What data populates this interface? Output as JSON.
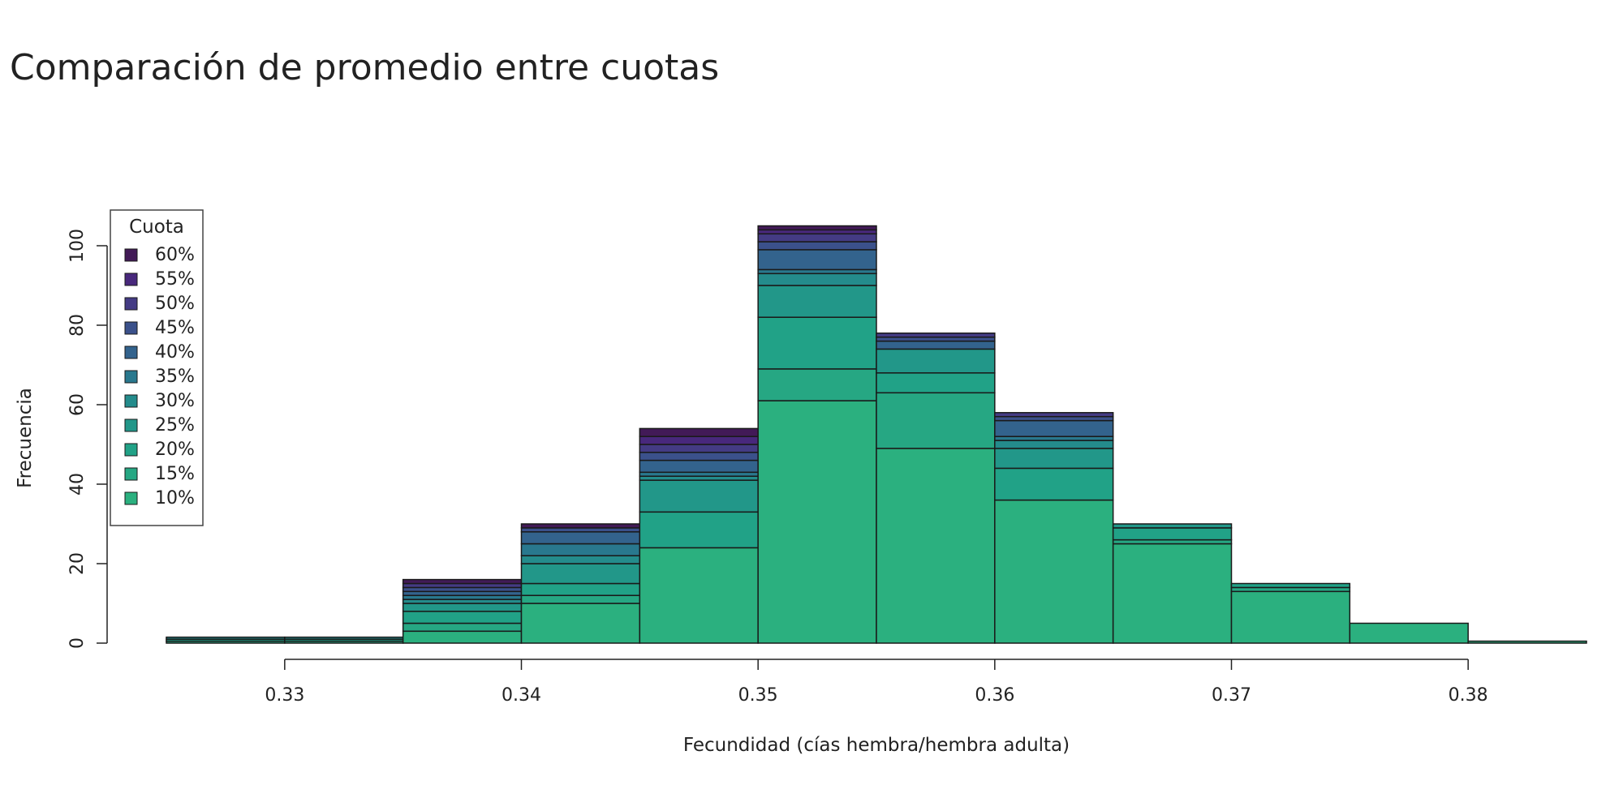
{
  "title": "Comparación de promedio entre cuotas",
  "chart_data": {
    "type": "bar",
    "stacked": true,
    "xlabel": "Fecundidad (cías hembra/hembra adulta)",
    "ylabel": "Frecuencia",
    "xlim": [
      0.325,
      0.385
    ],
    "ylim": [
      0,
      105
    ],
    "x_ticks": [
      0.33,
      0.34,
      0.35,
      0.36,
      0.37,
      0.38
    ],
    "x_tick_labels": [
      "0.33",
      "0.34",
      "0.35",
      "0.36",
      "0.37",
      "0.38"
    ],
    "y_ticks": [
      0,
      20,
      40,
      60,
      80,
      100
    ],
    "y_tick_labels": [
      "0",
      "20",
      "40",
      "60",
      "80",
      "100"
    ],
    "bins": [
      [
        0.325,
        0.33
      ],
      [
        0.33,
        0.335
      ],
      [
        0.335,
        0.34
      ],
      [
        0.34,
        0.345
      ],
      [
        0.345,
        0.35
      ],
      [
        0.35,
        0.355
      ],
      [
        0.355,
        0.36
      ],
      [
        0.36,
        0.365
      ],
      [
        0.365,
        0.37
      ],
      [
        0.37,
        0.375
      ],
      [
        0.375,
        0.38
      ],
      [
        0.38,
        0.385
      ]
    ],
    "legend": {
      "title": "Cuota",
      "position": "top-left"
    },
    "series": [
      {
        "name": "10%",
        "color": "#2bb07f",
        "values": [
          0,
          0,
          3,
          10,
          24,
          61,
          49,
          36,
          25,
          13,
          5,
          0.5
        ]
      },
      {
        "name": "15%",
        "color": "#26a783",
        "values": [
          0.5,
          0.5,
          2,
          2,
          0,
          8,
          14,
          0,
          1,
          1,
          0,
          0
        ]
      },
      {
        "name": "20%",
        "color": "#21a287",
        "values": [
          0.5,
          0.5,
          3,
          3,
          9,
          13,
          5,
          8,
          3,
          1,
          0,
          0
        ]
      },
      {
        "name": "25%",
        "color": "#229789",
        "values": [
          0,
          0,
          2,
          5,
          8,
          8,
          6,
          5,
          1,
          0,
          0,
          0
        ]
      },
      {
        "name": "30%",
        "color": "#248c8c",
        "values": [
          0.5,
          0.5,
          1,
          2,
          1,
          3,
          0,
          2,
          0,
          0,
          0,
          0
        ]
      },
      {
        "name": "35%",
        "color": "#29788e",
        "values": [
          0,
          0,
          1,
          3,
          1,
          1,
          0,
          1,
          0,
          0,
          0,
          0
        ]
      },
      {
        "name": "40%",
        "color": "#33638d",
        "values": [
          0,
          0,
          1,
          3,
          3,
          5,
          2,
          4,
          0,
          0,
          0,
          0
        ]
      },
      {
        "name": "45%",
        "color": "#3b518b",
        "values": [
          0,
          0,
          1,
          1,
          2,
          2,
          1,
          1,
          0,
          0,
          0,
          0
        ]
      },
      {
        "name": "50%",
        "color": "#443b84",
        "values": [
          0,
          0,
          1,
          0,
          2,
          2,
          1,
          1,
          0,
          0,
          0,
          0
        ]
      },
      {
        "name": "55%",
        "color": "#48287c",
        "values": [
          0,
          0,
          0,
          0,
          2,
          1,
          0,
          0,
          0,
          0,
          0,
          0
        ]
      },
      {
        "name": "60%",
        "color": "#421a57",
        "values": [
          0,
          0,
          1,
          1,
          2,
          1,
          0,
          0,
          0,
          0,
          0,
          0
        ]
      }
    ]
  }
}
